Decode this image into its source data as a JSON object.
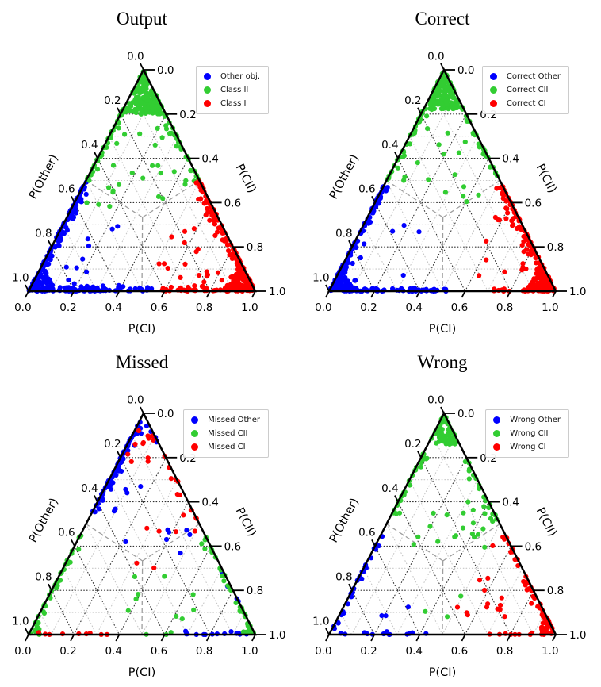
{
  "figure": {
    "background": "#ffffff",
    "layout": "2x2 ternary scatter plots"
  },
  "marker_radius": 3.1,
  "colors": {
    "blue": "#0000ff",
    "green": "#32cd32",
    "red": "#ff0000"
  },
  "tick_labels": {
    "left": [
      "0.0",
      "0.2",
      "0.4",
      "0.6",
      "0.8",
      "1.0"
    ],
    "right": [
      "1.0",
      "0.8",
      "0.6",
      "0.4",
      "0.2",
      "0.0"
    ],
    "bottom": [
      "0.0",
      "0.2",
      "0.4",
      "0.6",
      "0.8",
      "1.0"
    ]
  },
  "tick_values": [
    0,
    0.2,
    0.4,
    0.6,
    0.8,
    1.0
  ],
  "grid": {
    "step": 0.1,
    "major_every": 0.2,
    "major_color": "#2f2f2f",
    "minor_color": "#c6c6c6",
    "style": "dotted"
  },
  "partition_lines": {
    "style": "dashed",
    "color": "#9e9e9e",
    "from": "centroid (1/3,1/3,1/3)",
    "to": [
      "left-edge midpoint",
      "right-edge midpoint",
      "bottom-edge midpoint"
    ]
  },
  "chart_data": [
    {
      "type": "scatter-ternary",
      "title": "Output",
      "axis_labels": {
        "bottom": "P(CI)",
        "left": "P(Other)",
        "right": "P(CII)"
      },
      "axis_range": [
        0,
        1
      ],
      "legend": [
        {
          "label": "Other obj.",
          "color": "#0000ff"
        },
        {
          "label": "Class II",
          "color": "#32cd32"
        },
        {
          "label": "Class I",
          "color": "#ff0000"
        }
      ],
      "series": [
        {
          "name": "Other obj.",
          "color": "#0000ff",
          "clusters": [
            {
              "kind": "edge",
              "edge": "left",
              "t0": 0.5,
              "t1": 1.0,
              "depth": 0.035,
              "n": 120
            },
            {
              "kind": "corner",
              "corner": "bl",
              "size": 0.12,
              "n": 60
            },
            {
              "kind": "edge",
              "edge": "bottom",
              "t0": 0.02,
              "t1": 0.55,
              "depth": 0.03,
              "n": 85
            },
            {
              "kind": "scatter",
              "u": [
                0.03,
                0.3
              ],
              "v": [
                0.03,
                0.3
              ],
              "w": [
                0.4,
                0.94
              ],
              "n": 12
            }
          ]
        },
        {
          "name": "Class II",
          "color": "#32cd32",
          "clusters": [
            {
              "kind": "corner",
              "corner": "top",
              "size": 0.2,
              "n": 170
            },
            {
              "kind": "edge",
              "edge": "left",
              "t0": 0.18,
              "t1": 0.5,
              "depth": 0.035,
              "n": 38
            },
            {
              "kind": "edge",
              "edge": "right",
              "t0": 0.5,
              "t1": 0.8,
              "depth": 0.035,
              "n": 30
            },
            {
              "kind": "scatter",
              "u": [
                0.05,
                0.45
              ],
              "v": [
                0.38,
                0.78
              ],
              "w": [
                0.02,
                0.55
              ],
              "n": 26
            }
          ]
        },
        {
          "name": "Class I",
          "color": "#ff0000",
          "clusters": [
            {
              "kind": "corner",
              "corner": "br",
              "size": 0.14,
              "n": 140
            },
            {
              "kind": "edge",
              "edge": "right",
              "t0": 0.02,
              "t1": 0.5,
              "depth": 0.05,
              "n": 95
            },
            {
              "kind": "edge",
              "edge": "bottom",
              "t0": 0.58,
              "t1": 0.99,
              "depth": 0.03,
              "n": 45
            },
            {
              "kind": "scatter",
              "u": [
                0.5,
                0.85
              ],
              "v": [
                0.03,
                0.42
              ],
              "w": [
                0.0,
                0.45
              ],
              "n": 22
            }
          ]
        }
      ]
    },
    {
      "type": "scatter-ternary",
      "title": "Correct",
      "axis_labels": {
        "bottom": "P(CI)",
        "left": "P(Other)",
        "right": "P(CII)"
      },
      "axis_range": [
        0,
        1
      ],
      "legend": [
        {
          "label": "Correct Other",
          "color": "#0000ff"
        },
        {
          "label": "Correct CII",
          "color": "#32cd32"
        },
        {
          "label": "Correct CI",
          "color": "#ff0000"
        }
      ],
      "series": [
        {
          "name": "Correct Other",
          "color": "#0000ff",
          "clusters": [
            {
              "kind": "edge",
              "edge": "left",
              "t0": 0.52,
              "t1": 1.0,
              "depth": 0.035,
              "n": 100
            },
            {
              "kind": "corner",
              "corner": "bl",
              "size": 0.11,
              "n": 55
            },
            {
              "kind": "edge",
              "edge": "bottom",
              "t0": 0.02,
              "t1": 0.52,
              "depth": 0.025,
              "n": 75
            },
            {
              "kind": "scatter",
              "u": [
                0.03,
                0.3
              ],
              "v": [
                0.03,
                0.3
              ],
              "w": [
                0.42,
                0.94
              ],
              "n": 9
            }
          ]
        },
        {
          "name": "Correct CII",
          "color": "#32cd32",
          "clusters": [
            {
              "kind": "corner",
              "corner": "top",
              "size": 0.18,
              "n": 150
            },
            {
              "kind": "edge",
              "edge": "left",
              "t0": 0.18,
              "t1": 0.5,
              "depth": 0.03,
              "n": 30
            },
            {
              "kind": "edge",
              "edge": "right",
              "t0": 0.52,
              "t1": 0.8,
              "depth": 0.03,
              "n": 26
            },
            {
              "kind": "scatter",
              "u": [
                0.05,
                0.45
              ],
              "v": [
                0.4,
                0.78
              ],
              "w": [
                0.02,
                0.55
              ],
              "n": 16
            }
          ]
        },
        {
          "name": "Correct CI",
          "color": "#ff0000",
          "clusters": [
            {
              "kind": "corner",
              "corner": "br",
              "size": 0.13,
              "n": 130
            },
            {
              "kind": "edge",
              "edge": "right",
              "t0": 0.02,
              "t1": 0.48,
              "depth": 0.05,
              "n": 85
            },
            {
              "kind": "edge",
              "edge": "bottom",
              "t0": 0.72,
              "t1": 0.99,
              "depth": 0.02,
              "n": 18
            },
            {
              "kind": "scatter",
              "u": [
                0.55,
                0.85
              ],
              "v": [
                0.05,
                0.42
              ],
              "w": [
                0.0,
                0.4
              ],
              "n": 20
            }
          ]
        }
      ]
    },
    {
      "type": "scatter-ternary",
      "title": "Missed",
      "axis_labels": {
        "bottom": "P(CI)",
        "left": "P(Other)",
        "right": "P(CII)"
      },
      "axis_range": [
        0,
        1
      ],
      "legend": [
        {
          "label": "Missed Other",
          "color": "#0000ff"
        },
        {
          "label": "Missed CII",
          "color": "#32cd32"
        },
        {
          "label": "Missed CI",
          "color": "#ff0000"
        }
      ],
      "series": [
        {
          "name": "Missed Other",
          "color": "#0000ff",
          "clusters": [
            {
              "kind": "edge",
              "edge": "left",
              "t0": 0.02,
              "t1": 0.45,
              "depth": 0.04,
              "n": 75
            },
            {
              "kind": "scatter",
              "u": [
                0.05,
                0.5
              ],
              "v": [
                0.3,
                0.7
              ],
              "w": [
                0.05,
                0.55
              ],
              "n": 12
            },
            {
              "kind": "edge",
              "edge": "bottom",
              "t0": 0.68,
              "t1": 0.97,
              "depth": 0.02,
              "n": 14
            },
            {
              "kind": "edge",
              "edge": "right",
              "t0": 0.86,
              "t1": 0.98,
              "depth": 0.025,
              "n": 5
            },
            {
              "kind": "edge",
              "edge": "right",
              "t0": 0.15,
              "t1": 0.32,
              "depth": 0.03,
              "n": 4
            }
          ]
        },
        {
          "name": "Missed CII",
          "color": "#32cd32",
          "clusters": [
            {
              "kind": "edge",
              "edge": "left",
              "t0": 0.55,
              "t1": 0.99,
              "depth": 0.03,
              "n": 32
            },
            {
              "kind": "corner",
              "corner": "bl",
              "size": 0.07,
              "n": 14
            },
            {
              "kind": "edge",
              "edge": "right",
              "t0": 0.02,
              "t1": 0.45,
              "depth": 0.04,
              "n": 30
            },
            {
              "kind": "corner",
              "corner": "br",
              "size": 0.06,
              "n": 16
            },
            {
              "kind": "scatter",
              "u": [
                0.3,
                0.75
              ],
              "v": [
                0.03,
                0.35
              ],
              "w": [
                0.0,
                0.6
              ],
              "n": 10
            },
            {
              "kind": "edge",
              "edge": "bottom",
              "t0": 0.5,
              "t1": 0.65,
              "depth": 0.02,
              "n": 3
            }
          ]
        },
        {
          "name": "Missed CI",
          "color": "#ff0000",
          "clusters": [
            {
              "kind": "scatter",
              "u": [
                0.01,
                0.14
              ],
              "v": [
                0.76,
                0.97
              ],
              "w": [
                0.0,
                0.2
              ],
              "n": 12
            },
            {
              "kind": "edge",
              "edge": "right",
              "t0": 0.5,
              "t1": 0.82,
              "depth": 0.04,
              "n": 12
            },
            {
              "kind": "scatter",
              "u": [
                0.25,
                0.6
              ],
              "v": [
                0.3,
                0.6
              ],
              "w": [
                0.0,
                0.45
              ],
              "n": 7
            },
            {
              "kind": "edge",
              "edge": "bottom",
              "t0": 0.04,
              "t1": 0.47,
              "depth": 0.012,
              "n": 9
            }
          ]
        }
      ]
    },
    {
      "type": "scatter-ternary",
      "title": "Wrong",
      "axis_labels": {
        "bottom": "P(CI)",
        "left": "P(Other)",
        "right": "P(CII)"
      },
      "axis_range": [
        0,
        1
      ],
      "legend": [
        {
          "label": "Wrong Other",
          "color": "#0000ff"
        },
        {
          "label": "Wrong CII",
          "color": "#32cd32"
        },
        {
          "label": "Wrong CI",
          "color": "#ff0000"
        }
      ],
      "series": [
        {
          "name": "Wrong Other",
          "color": "#0000ff",
          "clusters": [
            {
              "kind": "edge",
              "edge": "left",
              "t0": 0.55,
              "t1": 0.99,
              "depth": 0.025,
              "n": 32
            },
            {
              "kind": "edge",
              "edge": "bottom",
              "t0": 0.03,
              "t1": 0.45,
              "depth": 0.018,
              "n": 13
            },
            {
              "kind": "scatter",
              "u": [
                0.05,
                0.3
              ],
              "v": [
                0.05,
                0.3
              ],
              "w": [
                0.45,
                0.9
              ],
              "n": 3
            }
          ]
        },
        {
          "name": "Wrong CII",
          "color": "#32cd32",
          "clusters": [
            {
              "kind": "corner",
              "corner": "top",
              "size": 0.14,
              "n": 70
            },
            {
              "kind": "edge",
              "edge": "left",
              "t0": 0.16,
              "t1": 0.45,
              "depth": 0.035,
              "n": 28
            },
            {
              "kind": "edge",
              "edge": "right",
              "t0": 0.52,
              "t1": 0.8,
              "depth": 0.035,
              "n": 20
            },
            {
              "kind": "scatter",
              "u": [
                0.1,
                0.5
              ],
              "v": [
                0.38,
                0.75
              ],
              "w": [
                0.02,
                0.52
              ],
              "n": 20
            },
            {
              "kind": "scatter",
              "u": [
                0.35,
                0.55
              ],
              "v": [
                0.05,
                0.3
              ],
              "w": [
                0.2,
                0.6
              ],
              "n": 3
            }
          ]
        },
        {
          "name": "Wrong CI",
          "color": "#ff0000",
          "clusters": [
            {
              "kind": "edge",
              "edge": "right",
              "t0": 0.02,
              "t1": 0.45,
              "depth": 0.045,
              "n": 38
            },
            {
              "kind": "corner",
              "corner": "br",
              "size": 0.09,
              "n": 30
            },
            {
              "kind": "edge",
              "edge": "bottom",
              "t0": 0.7,
              "t1": 0.97,
              "depth": 0.012,
              "n": 10
            },
            {
              "kind": "scatter",
              "u": [
                0.48,
                0.78
              ],
              "v": [
                0.08,
                0.42
              ],
              "w": [
                0.0,
                0.44
              ],
              "n": 15
            }
          ]
        }
      ]
    }
  ]
}
